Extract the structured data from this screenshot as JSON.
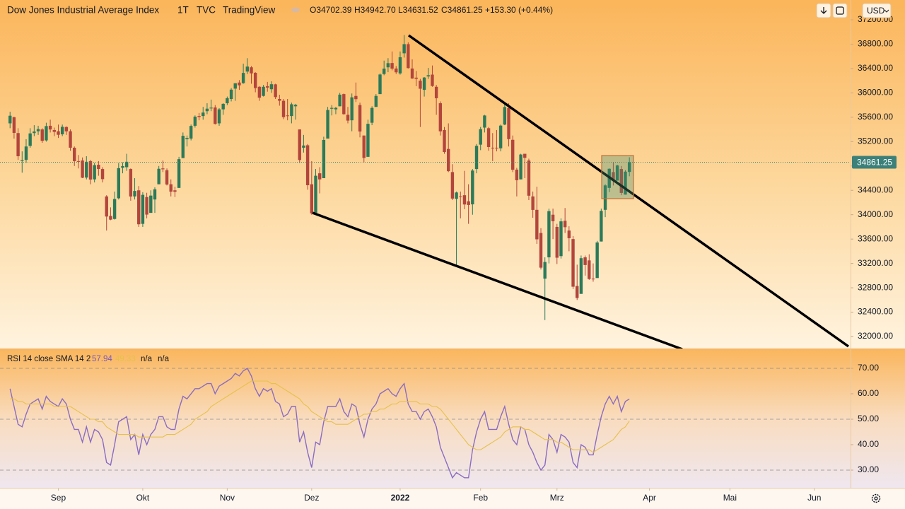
{
  "chart_data": [
    {
      "type": "candlestick",
      "title": "Dow Jones Industrial Average Index",
      "interval": "1T",
      "exchange": "TVC",
      "source": "TradingView",
      "ohlc_labels": [
        "O34702.39",
        "H34942.70",
        "L34631.52",
        "C34861.25"
      ],
      "change": "+153.30 (+0.44%)",
      "currency": "USD",
      "up_color": "#2b7a59",
      "down_color": "#b3453c",
      "xlim": [
        -2.5,
        209
      ],
      "ylim": [
        31803,
        37525
      ],
      "xticks": [
        {
          "value": 12,
          "label": "Sep"
        },
        {
          "value": 33,
          "label": "Okt"
        },
        {
          "value": 54,
          "label": "Nov"
        },
        {
          "value": 75,
          "label": "Dez"
        },
        {
          "value": 97,
          "label": "2022"
        },
        {
          "value": 117,
          "label": "Feb"
        },
        {
          "value": 136,
          "label": "Mrz"
        },
        {
          "value": 159,
          "label": "Apr"
        },
        {
          "value": 179,
          "label": "Mai"
        },
        {
          "value": 200,
          "label": "Jun"
        }
      ],
      "yticks": [
        {
          "value": 37200,
          "label": "37200.00"
        },
        {
          "value": 36800,
          "label": "36800.00"
        },
        {
          "value": 36400,
          "label": "36400.00"
        },
        {
          "value": 36000,
          "label": "36000.00"
        },
        {
          "value": 35600,
          "label": "35600.00"
        },
        {
          "value": 35200,
          "label": "35200.00"
        },
        {
          "value": 34800,
          "label": "34800.00"
        },
        {
          "value": 34400,
          "label": "34400.00"
        },
        {
          "value": 34000,
          "label": "34000.00"
        },
        {
          "value": 33600,
          "label": "33600.00"
        },
        {
          "value": 33200,
          "label": "33200.00"
        },
        {
          "value": 32800,
          "label": "32800.00"
        },
        {
          "value": 32400,
          "label": "32400.00"
        },
        {
          "value": 32000,
          "label": "32000.00"
        }
      ],
      "open": [
        35500,
        35600,
        35340,
        34880,
        34900,
        35130,
        35340,
        35370,
        35400,
        35220,
        35460,
        35390,
        35370,
        35320,
        35440,
        35370,
        35100,
        34880,
        34890,
        34610,
        34880,
        34580,
        34820,
        34750,
        34300,
        33980,
        33930,
        34270,
        34770,
        34780,
        34750,
        34300,
        34400,
        33850,
        34290,
        34030,
        34250,
        34500,
        34760,
        34730,
        34500,
        34400,
        34440,
        34930,
        35240,
        35250,
        35460,
        35620,
        35620,
        35700,
        35750,
        35760,
        35500,
        35730,
        35830,
        35900,
        36070,
        36170,
        36160,
        36350,
        36420,
        36330,
        36100,
        35950,
        36110,
        36060,
        36140,
        35900,
        35870,
        35630,
        35620,
        35780,
        35400,
        35100,
        35140,
        34500,
        34030,
        34680,
        34600,
        35250,
        35740,
        35730,
        35780,
        35980,
        35640,
        35550,
        35950,
        35800,
        35300,
        34950,
        35510,
        35770,
        35980,
        36310,
        36420,
        36490,
        36400,
        36320,
        36650,
        36800,
        36400,
        36250,
        36200,
        36050,
        36270,
        36300,
        36100,
        35830,
        35390,
        35080,
        34700,
        34260,
        34300,
        34320,
        34220,
        34170,
        34750,
        35150,
        35430,
        35420,
        35100,
        35100,
        35090,
        35480,
        35750,
        35230,
        34740,
        34580,
        35000,
        34890,
        34300,
        34080,
        33700,
        32950,
        33300,
        34000,
        33800,
        33320,
        33900,
        33740,
        33600,
        32830,
        32700,
        33300,
        33250,
        32950,
        32960,
        33560,
        34080,
        34440,
        34700,
        34560,
        34750,
        34330,
        34702.39
      ],
      "high": [
        35690,
        35610,
        35420,
        35040,
        35240,
        35420,
        35470,
        35460,
        35420,
        35510,
        35560,
        35430,
        35480,
        35480,
        35450,
        35400,
        35120,
        34980,
        34940,
        34960,
        34900,
        34850,
        34880,
        34780,
        34320,
        34120,
        34380,
        34850,
        34860,
        35000,
        34760,
        34600,
        34470,
        34370,
        34360,
        34400,
        34450,
        34800,
        34890,
        34760,
        34580,
        34460,
        34950,
        35350,
        35300,
        35480,
        35630,
        35670,
        35770,
        35830,
        35890,
        35800,
        35750,
        35830,
        35940,
        36080,
        36160,
        36210,
        36480,
        36570,
        36440,
        36340,
        36110,
        36130,
        36180,
        36190,
        36150,
        35970,
        35900,
        35900,
        35840,
        35820,
        35400,
        35310,
        35160,
        34880,
        34750,
        34780,
        35280,
        35770,
        35800,
        35770,
        36000,
        35990,
        35770,
        35990,
        36170,
        35840,
        35300,
        35560,
        35780,
        35980,
        36320,
        36530,
        36570,
        36680,
        36440,
        36680,
        36950,
        36830,
        36550,
        36360,
        36230,
        36260,
        36410,
        36450,
        36130,
        35860,
        35440,
        35500,
        34830,
        34380,
        34380,
        34720,
        34500,
        34750,
        35160,
        35440,
        35640,
        35440,
        35340,
        35390,
        35480,
        35830,
        35830,
        35300,
        34770,
        35000,
        35000,
        34920,
        34380,
        34460,
        33780,
        33300,
        34100,
        34100,
        33850,
        33940,
        34110,
        33810,
        33650,
        33180,
        33330,
        33330,
        33350,
        33200,
        33570,
        34100,
        34500,
        34760,
        34860,
        34820,
        34800,
        34730,
        34942.7
      ],
      "low": [
        35420,
        35250,
        34900,
        34690,
        34850,
        35100,
        35290,
        35310,
        35180,
        35200,
        35350,
        35290,
        35260,
        35290,
        35310,
        35050,
        34800,
        34760,
        34600,
        34580,
        34500,
        34530,
        34640,
        34530,
        33740,
        33910,
        33920,
        34250,
        34680,
        34720,
        34230,
        34250,
        33800,
        33800,
        33940,
        34030,
        34030,
        34500,
        34700,
        34480,
        34300,
        34290,
        34440,
        34930,
        35120,
        35220,
        35430,
        35550,
        35560,
        35650,
        35700,
        35480,
        35460,
        35640,
        35800,
        35860,
        35870,
        36050,
        36150,
        36310,
        36150,
        36010,
        35870,
        35940,
        36020,
        36000,
        35900,
        35790,
        35570,
        35550,
        35500,
        35560,
        34850,
        35020,
        34410,
        34000,
        34030,
        34350,
        34600,
        35250,
        35630,
        35650,
        35780,
        35640,
        35500,
        35370,
        35850,
        35270,
        34860,
        34950,
        35470,
        35770,
        35980,
        36290,
        36340,
        36370,
        36310,
        36300,
        36580,
        36400,
        36230,
        36110,
        35440,
        35940,
        36230,
        36100,
        35640,
        35300,
        35000,
        34700,
        34240,
        33150,
        33940,
        34090,
        33850,
        34000,
        34680,
        35060,
        35350,
        35050,
        34880,
        35040,
        35040,
        35470,
        35120,
        34700,
        34300,
        34580,
        34600,
        34240,
        33950,
        33520,
        33100,
        32270,
        33200,
        33600,
        33190,
        33280,
        33700,
        33400,
        32780,
        32600,
        32720,
        33000,
        32930,
        32900,
        32980,
        33560,
        33960,
        34370,
        34480,
        34560,
        34320,
        34330,
        34631.52
      ],
      "close": [
        35625,
        35343,
        34960,
        34894,
        35120,
        35335,
        35366,
        35405,
        35213,
        35455,
        35399,
        35360,
        35312,
        35443,
        35369,
        35100,
        34879,
        34879,
        34607,
        34869,
        34577,
        34814,
        34751,
        34584,
        33970,
        33919,
        34258,
        34764,
        34798,
        34869,
        34299,
        34390,
        33843,
        34326,
        34002,
        34314,
        34417,
        34754,
        34746,
        34496,
        34378,
        34377,
        34912,
        35295,
        35259,
        35457,
        35609,
        35603,
        35677,
        35741,
        35757,
        35491,
        35730,
        35820,
        35913,
        36053,
        36158,
        36124,
        36328,
        36432,
        36320,
        36079,
        35921,
        36100,
        36087,
        36142,
        35931,
        35871,
        35602,
        35619,
        35813,
        35804,
        34899,
        35136,
        34484,
        34022,
        34640,
        34580,
        35227,
        35719,
        35754,
        35754,
        35971,
        35651,
        35545,
        35927,
        35897,
        35366,
        34932,
        35492,
        35753,
        35950,
        36302,
        36398,
        36488,
        36398,
        36338,
        36585,
        36800,
        36407,
        36236,
        36231,
        36068,
        36252,
        36290,
        36113,
        35912,
        35369,
        35029,
        34715,
        34265,
        34365,
        34297,
        34168,
        34160,
        34725,
        35131,
        35405,
        35629,
        35111,
        35089,
        35091,
        35463,
        35768,
        35241,
        34738,
        34566,
        34988,
        34934,
        34312,
        34079,
        33596,
        33131,
        33224,
        34059,
        33893,
        33294,
        33891,
        33795,
        33614,
        32818,
        32632,
        33286,
        33174,
        32944,
        32945,
        33544,
        34063,
        34481,
        34754,
        34553,
        34808,
        34358,
        34707,
        34861.25
      ]
    },
    {
      "type": "line",
      "title": "RSI 14 close SMA 14 2",
      "legend_values": [
        "57.94",
        "49.33",
        "n/a",
        "n/a"
      ],
      "ylim": [
        23.06,
        77.5
      ],
      "band_lines": [
        70,
        50,
        30
      ],
      "yticks": [
        {
          "value": 70,
          "label": "70.00"
        },
        {
          "value": 60,
          "label": "60.00"
        },
        {
          "value": 50,
          "label": "50.00"
        },
        {
          "value": 40,
          "label": "40.00"
        },
        {
          "value": 30,
          "label": "30.00"
        }
      ],
      "series": [
        {
          "color": "#8a6cc2",
          "values": [
            62,
            55,
            48,
            47,
            52,
            56,
            57,
            58,
            54,
            59,
            57,
            56,
            55,
            58,
            56,
            50,
            46,
            46,
            41,
            47,
            41,
            46,
            45,
            42,
            33,
            32,
            40,
            49,
            50,
            51,
            42,
            44,
            36,
            44,
            40,
            44,
            46,
            51,
            51,
            47,
            46,
            46,
            54,
            59,
            58,
            60,
            62,
            62,
            63,
            64,
            64,
            60,
            63,
            64,
            65,
            66,
            68,
            67,
            69,
            70,
            67,
            62,
            59,
            62,
            61,
            62,
            57,
            56,
            51,
            52,
            55,
            55,
            41,
            45,
            37,
            31,
            41,
            40,
            49,
            55,
            55,
            55,
            58,
            53,
            51,
            56,
            55,
            48,
            43,
            50,
            54,
            56,
            60,
            61,
            62,
            60,
            59,
            62,
            64,
            56,
            53,
            53,
            50,
            53,
            54,
            51,
            47,
            39,
            35,
            31,
            27,
            29,
            28,
            27,
            27,
            38,
            45,
            50,
            53,
            46,
            46,
            46,
            51,
            55,
            48,
            42,
            40,
            47,
            46,
            40,
            37,
            33,
            30,
            32,
            44,
            42,
            37,
            44,
            43,
            41,
            33,
            31,
            40,
            39,
            36,
            36,
            44,
            51,
            56,
            59,
            56,
            59,
            53,
            57,
            57.94
          ]
        },
        {
          "color": "#e6c14a",
          "values": [
            58,
            58,
            57,
            57,
            56,
            56,
            56,
            56,
            56,
            56,
            56,
            55,
            55,
            55,
            55,
            55,
            54,
            53,
            52,
            51,
            50,
            50,
            49,
            49,
            47,
            46,
            45,
            44,
            44,
            44,
            44,
            44,
            43,
            43,
            43,
            43,
            43,
            43,
            43,
            44,
            44,
            44,
            45,
            46,
            47,
            48,
            50,
            51,
            52,
            53,
            55,
            56,
            57,
            58,
            59,
            60,
            61,
            62,
            63,
            64,
            65,
            65,
            65,
            65,
            65,
            64,
            64,
            63,
            62,
            61,
            60,
            59,
            58,
            56,
            55,
            53,
            52,
            51,
            50,
            49,
            49,
            48,
            48,
            48,
            48,
            49,
            50,
            51,
            52,
            52,
            53,
            53,
            54,
            54,
            55,
            56,
            56,
            57,
            57,
            57,
            57,
            57,
            56,
            56,
            56,
            55,
            55,
            54,
            52,
            50,
            48,
            46,
            44,
            42,
            40,
            39,
            38,
            38,
            39,
            40,
            41,
            42,
            43,
            45,
            46,
            47,
            47,
            47,
            46,
            46,
            45,
            44,
            43,
            42,
            42,
            42,
            41,
            41,
            40,
            39,
            38,
            38,
            38,
            38,
            38,
            37,
            38,
            39,
            40,
            41,
            42,
            44,
            46,
            47,
            49.33
          ]
        }
      ]
    }
  ]
}
